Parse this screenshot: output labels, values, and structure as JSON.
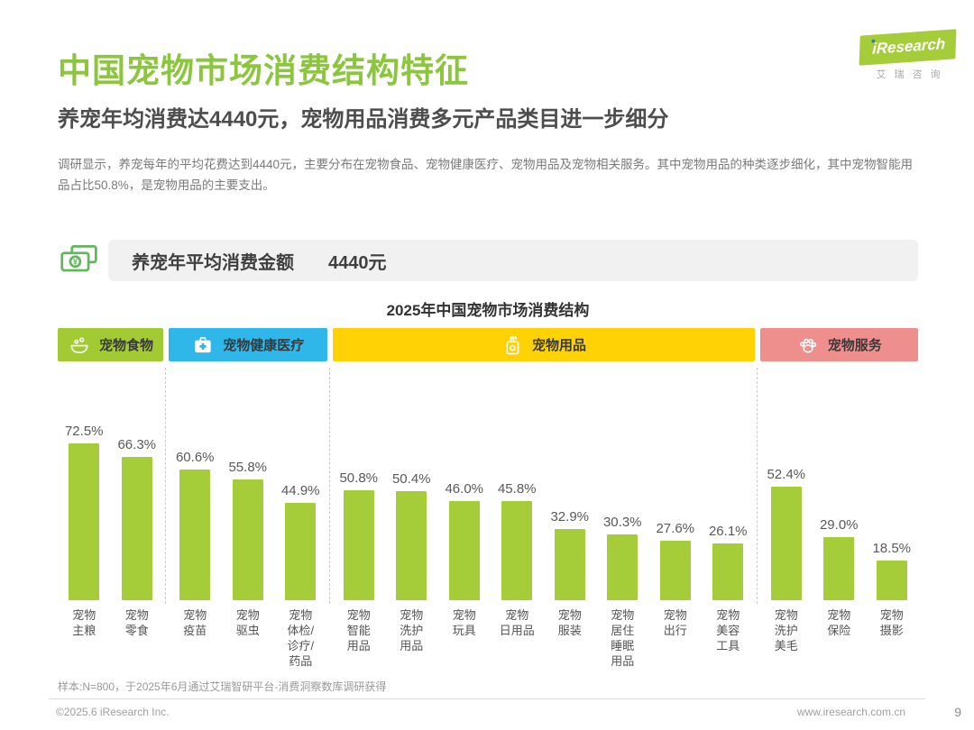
{
  "page": {
    "title": "中国宠物市场消费结构特征",
    "subtitle": "养宠年均消费达4440元，宠物用品消费多元产品类目进一步细分",
    "body": "调研显示，养宠每年的平均花费达到4440元，主要分布在宠物食品、宠物健康医疗、宠物用品及宠物相关服务。其中宠物用品的种类逐步细化，其中宠物智能用品占比50.8%，是宠物用品的主要支出。"
  },
  "logo": {
    "brand": "iResearch",
    "brand_cn": "艾瑞咨询"
  },
  "banner": {
    "icon": "money-icon",
    "label": "养宠年平均消费金额",
    "value": "4440元"
  },
  "chart_data": {
    "type": "bar",
    "title": "2025年中国宠物市场消费结构",
    "unit": "%",
    "ylim": [
      0,
      80
    ],
    "bar_color": "#a5cd39",
    "grid": false,
    "groups": [
      {
        "name": "宠物食物",
        "color": "#a2ca33",
        "icon": "pet-food-icon",
        "items": [
          {
            "label": "宠物\n主粮",
            "value": 72.5,
            "value_label": "72.5%"
          },
          {
            "label": "宠物\n零食",
            "value": 66.3,
            "value_label": "66.3%"
          }
        ]
      },
      {
        "name": "宠物健康医疗",
        "color": "#2fb7e9",
        "icon": "first-aid-icon",
        "items": [
          {
            "label": "宠物\n疫苗",
            "value": 60.6,
            "value_label": "60.6%"
          },
          {
            "label": "宠物\n驱虫",
            "value": 55.8,
            "value_label": "55.8%"
          },
          {
            "label": "宠物\n体检/\n诊疗/\n药品",
            "value": 44.9,
            "value_label": "44.9%"
          }
        ]
      },
      {
        "name": "宠物用品",
        "color": "#ffd205",
        "icon": "bottle-icon",
        "items": [
          {
            "label": "宠物\n智能\n用品",
            "value": 50.8,
            "value_label": "50.8%"
          },
          {
            "label": "宠物\n洗护\n用品",
            "value": 50.4,
            "value_label": "50.4%"
          },
          {
            "label": "宠物\n玩具",
            "value": 46.0,
            "value_label": "46.0%"
          },
          {
            "label": "宠物\n日用品",
            "value": 45.8,
            "value_label": "45.8%"
          },
          {
            "label": "宠物\n服装",
            "value": 32.9,
            "value_label": "32.9%"
          },
          {
            "label": "宠物\n居住\n睡眠\n用品",
            "value": 30.3,
            "value_label": "30.3%"
          },
          {
            "label": "宠物\n出行",
            "value": 27.6,
            "value_label": "27.6%"
          },
          {
            "label": "宠物\n美容\n工具",
            "value": 26.1,
            "value_label": "26.1%"
          }
        ]
      },
      {
        "name": "宠物服务",
        "color": "#ee8e8d",
        "icon": "paw-icon",
        "items": [
          {
            "label": "宠物\n洗护\n美毛",
            "value": 52.4,
            "value_label": "52.4%"
          },
          {
            "label": "宠物\n保险",
            "value": 29.0,
            "value_label": "29.0%"
          },
          {
            "label": "宠物\n摄影",
            "value": 18.5,
            "value_label": "18.5%"
          }
        ]
      }
    ]
  },
  "footer": {
    "note": "样本:N=800，于2025年6月通过艾瑞智研平台-消费洞察数库调研获得",
    "copyright": "©2025.6 iResearch Inc.",
    "website": "www.iresearch.com.cn",
    "page": "9"
  },
  "colors": {
    "title_green": "#8cc63f",
    "bar_green": "#a5cd39",
    "health_blue": "#2fb7e9",
    "supplies_yellow": "#ffd205",
    "service_pink": "#ee8e8d"
  }
}
